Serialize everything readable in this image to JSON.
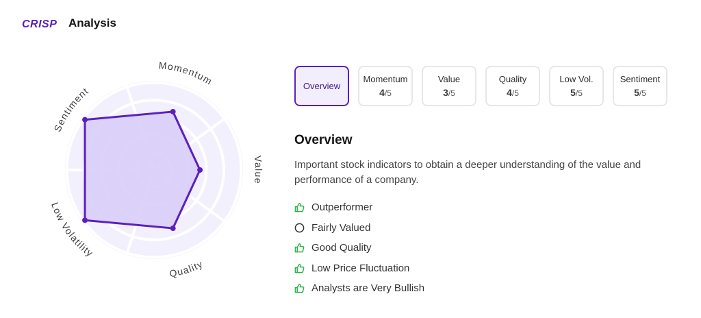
{
  "header": {
    "logo_text": "CRISP",
    "title": "Analysis",
    "brand_color": "#5a20bd"
  },
  "radar": {
    "scale_max": 5,
    "axes": [
      {
        "label": "Momentum",
        "score": 4
      },
      {
        "label": "Value",
        "score": 3
      },
      {
        "label": "Quality",
        "score": 4
      },
      {
        "label": "Low Volatility",
        "score": 5
      },
      {
        "label": "Sentiment",
        "score": 5
      }
    ],
    "fill_color": "#d9cdf7",
    "line_color": "#5a20bd",
    "background_color": "#f2f0fd"
  },
  "tabs": [
    {
      "label": "Overview",
      "score": null,
      "denominator": null,
      "active": true
    },
    {
      "label": "Momentum",
      "score": "4",
      "denominator": "/5",
      "active": false
    },
    {
      "label": "Value",
      "score": "3",
      "denominator": "/5",
      "active": false
    },
    {
      "label": "Quality",
      "score": "4",
      "denominator": "/5",
      "active": false
    },
    {
      "label": "Low Vol.",
      "score": "5",
      "denominator": "/5",
      "active": false
    },
    {
      "label": "Sentiment",
      "score": "5",
      "denominator": "/5",
      "active": false
    }
  ],
  "overview": {
    "title": "Overview",
    "description": "Important stock indicators to obtain a deeper understanding of the value and performance of a company.",
    "indicators": [
      {
        "text": "Outperformer",
        "icon": "thumbs-up-icon",
        "color": "#2db34a"
      },
      {
        "text": "Fairly Valued",
        "icon": "circle-outline-icon",
        "color": "#333333"
      },
      {
        "text": "Good Quality",
        "icon": "thumbs-up-icon",
        "color": "#2db34a"
      },
      {
        "text": "Low Price Fluctuation",
        "icon": "thumbs-up-icon",
        "color": "#2db34a"
      },
      {
        "text": "Analysts are Very Bullish",
        "icon": "thumbs-up-icon",
        "color": "#2db34a"
      }
    ]
  }
}
